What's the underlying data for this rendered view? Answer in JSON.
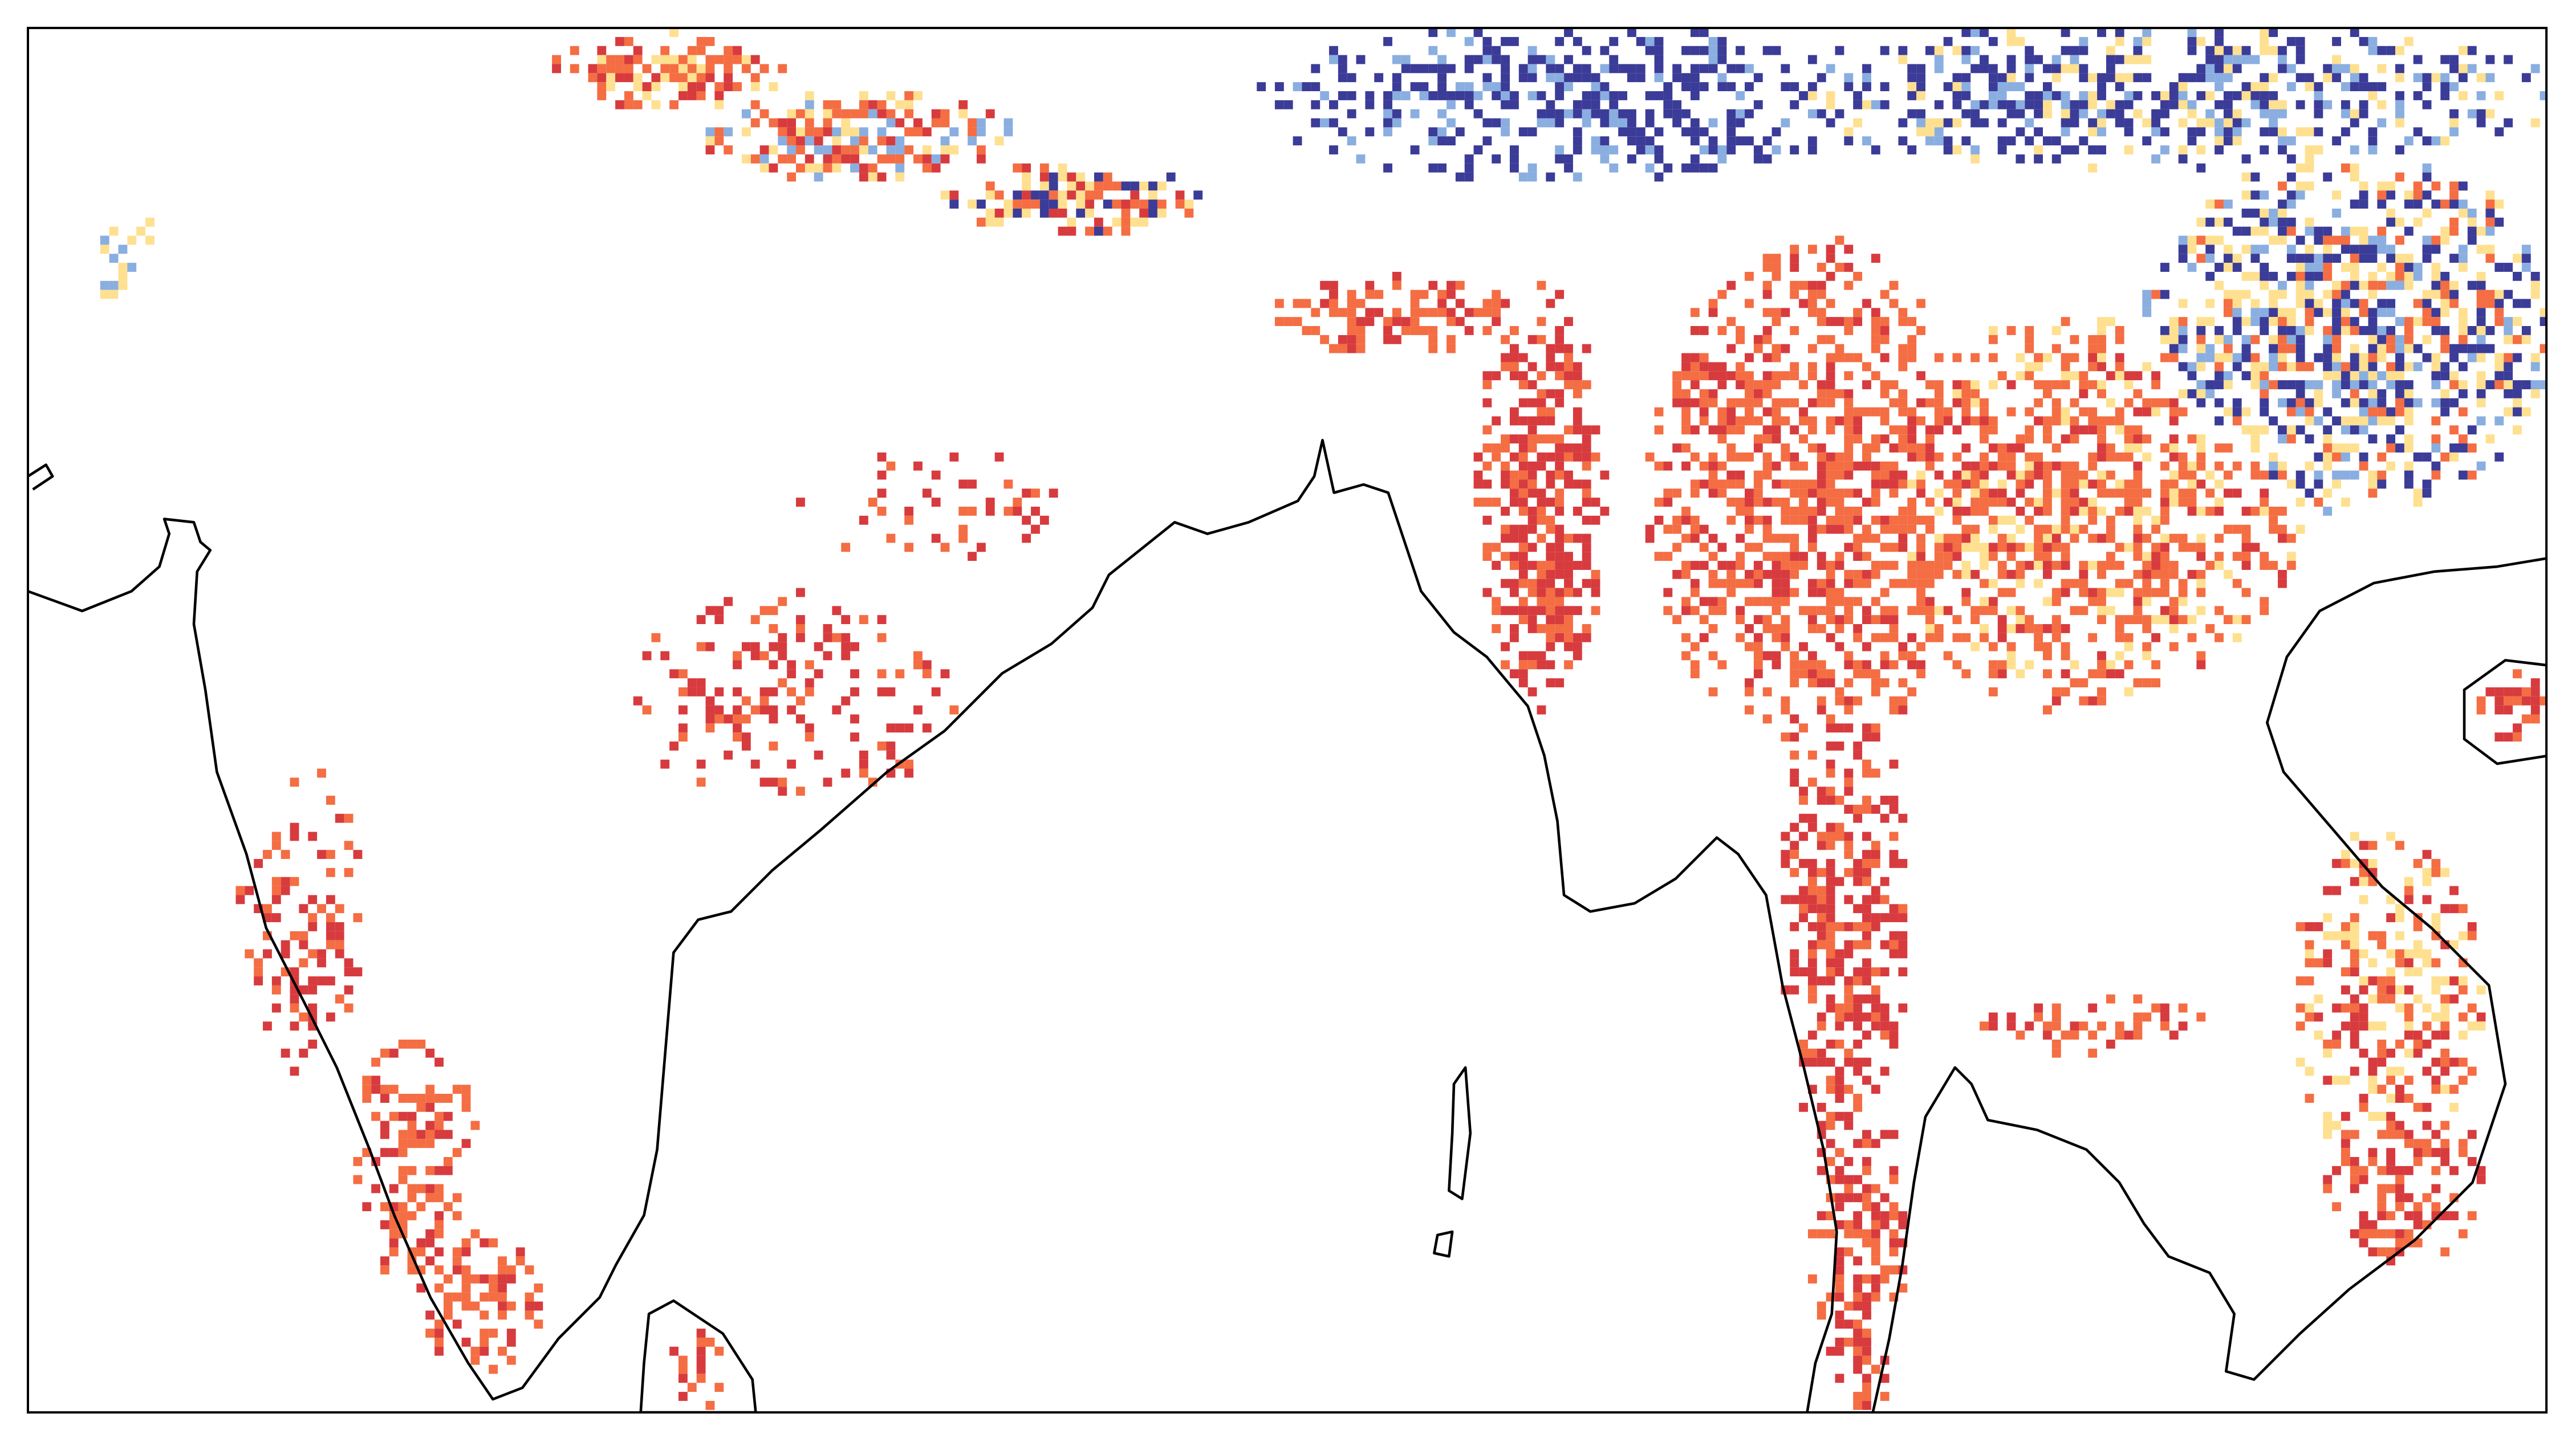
{
  "map": {
    "palette": [
      "#d73b3e",
      "#f46d43",
      "#fee090",
      "#8aaee0",
      "#3b3b98"
    ]
  }
}
